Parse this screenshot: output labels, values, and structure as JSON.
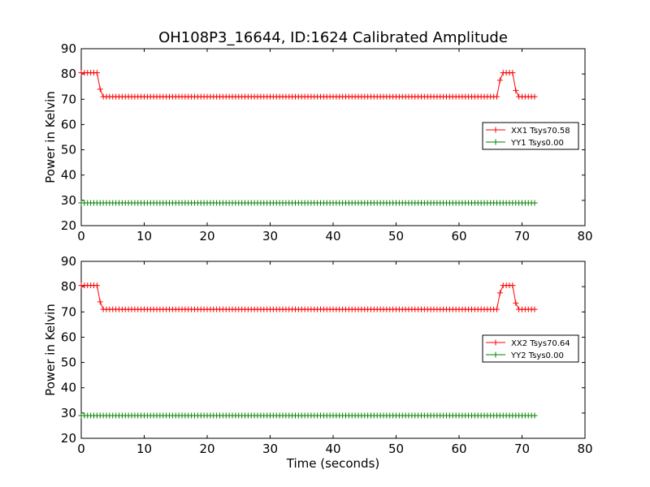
{
  "figure": {
    "title": "OH108P3_16644, ID:1624 Calibrated Amplitude"
  },
  "chart_data": [
    {
      "type": "line",
      "title": "OH108P3_16644, ID:1624 Calibrated Amplitude",
      "xlabel": "",
      "ylabel": "Power in Kelvin",
      "xlim": [
        0,
        80
      ],
      "ylim": [
        20,
        90
      ],
      "xticks": [
        0,
        10,
        20,
        30,
        40,
        50,
        60,
        70,
        80
      ],
      "yticks": [
        20,
        30,
        40,
        50,
        60,
        70,
        80,
        90
      ],
      "grid": false,
      "legend_position": "right",
      "marker": "+",
      "series": [
        {
          "name": "XX1 Tsys70.58",
          "color": "#ff0000",
          "points": [
            [
              0,
              80.5
            ],
            [
              2.5,
              80.5
            ],
            [
              3,
              74
            ],
            [
              3.5,
              71
            ],
            [
              66,
              71
            ],
            [
              66.5,
              77.5
            ],
            [
              67,
              80.5
            ],
            [
              68.5,
              80.5
            ],
            [
              69,
              73.5
            ],
            [
              69.5,
              71
            ],
            [
              72,
              71
            ]
          ]
        },
        {
          "name": "YY1 Tsys0.00",
          "color": "#008000",
          "points": [
            [
              0,
              29
            ],
            [
              72,
              29
            ]
          ]
        }
      ]
    },
    {
      "type": "line",
      "title": "",
      "xlabel": "Time (seconds)",
      "ylabel": "Power in Kelvin",
      "xlim": [
        0,
        80
      ],
      "ylim": [
        20,
        90
      ],
      "xticks": [
        0,
        10,
        20,
        30,
        40,
        50,
        60,
        70,
        80
      ],
      "yticks": [
        20,
        30,
        40,
        50,
        60,
        70,
        80,
        90
      ],
      "grid": false,
      "legend_position": "right",
      "marker": "+",
      "series": [
        {
          "name": "XX2 Tsys70.64",
          "color": "#ff0000",
          "points": [
            [
              0,
              80.5
            ],
            [
              2.5,
              80.5
            ],
            [
              3,
              74
            ],
            [
              3.5,
              71
            ],
            [
              66,
              71
            ],
            [
              66.5,
              77.5
            ],
            [
              67,
              80.5
            ],
            [
              68.5,
              80.5
            ],
            [
              69,
              73.5
            ],
            [
              69.5,
              71
            ],
            [
              72,
              71
            ]
          ]
        },
        {
          "name": "YY2 Tsys0.00",
          "color": "#008000",
          "points": [
            [
              0,
              29
            ],
            [
              72,
              29
            ]
          ]
        }
      ]
    }
  ]
}
